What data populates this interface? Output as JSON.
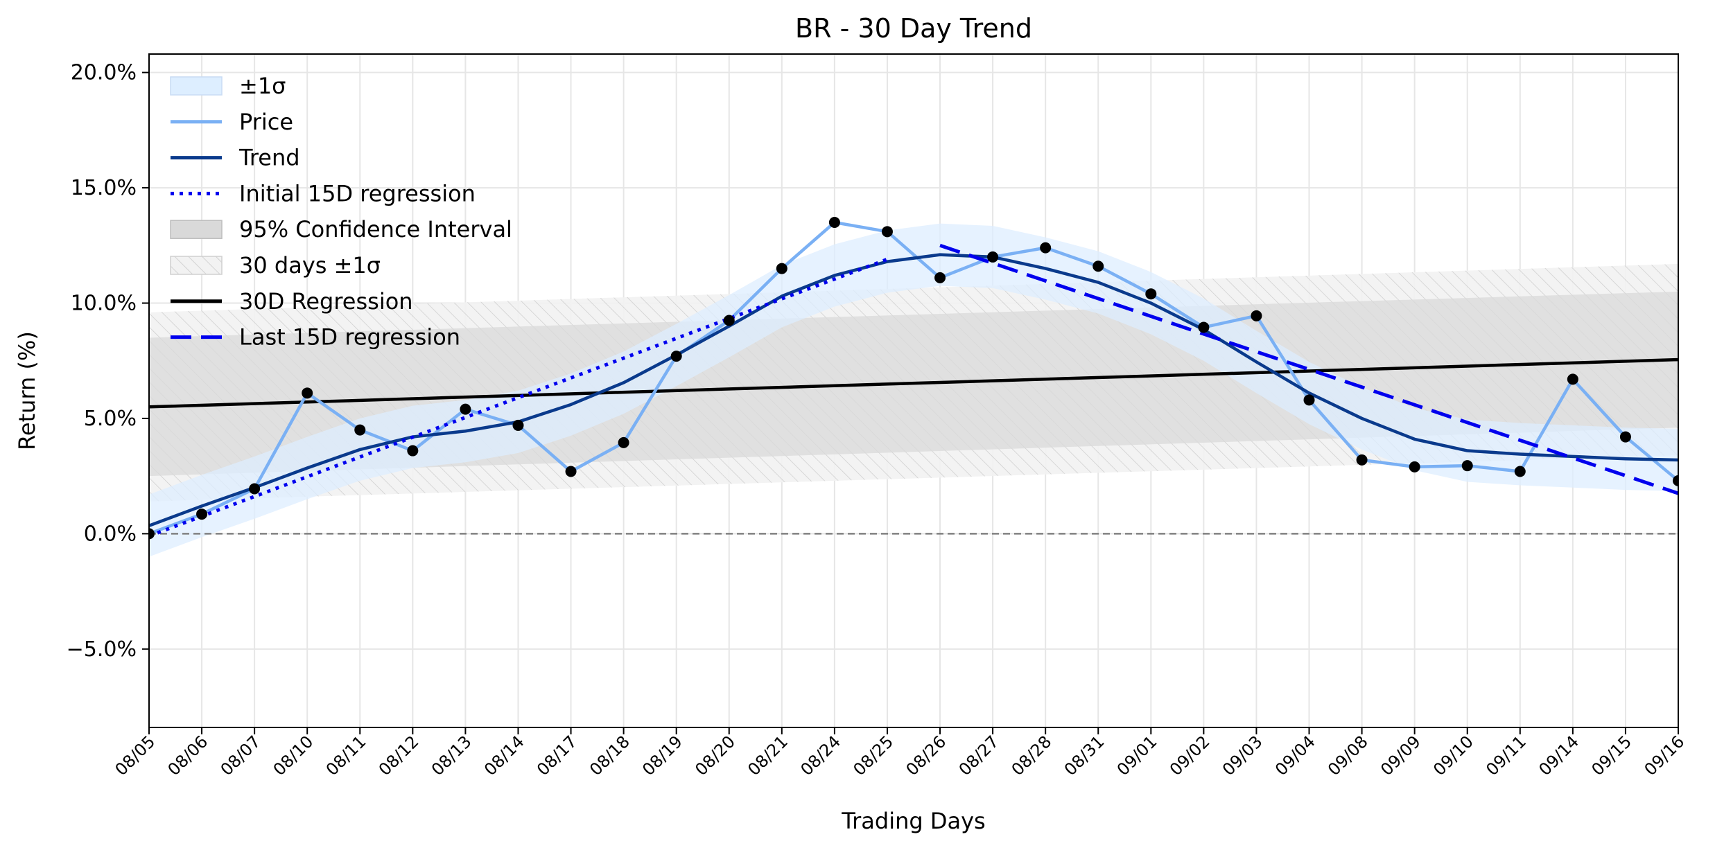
{
  "chart_data": {
    "type": "line",
    "title": "BR - 30 Day Trend",
    "xlabel": "Trading Days",
    "ylabel": "Return (%)",
    "ylim": [
      -8.4,
      20.8
    ],
    "yticks": [
      -5.0,
      0.0,
      5.0,
      10.0,
      15.0,
      20.0
    ],
    "ytick_labels": [
      "−5.0%",
      "0.0%",
      "5.0%",
      "10.0%",
      "15.0%",
      "20.0%"
    ],
    "grid": true,
    "legend_position": "top-left",
    "categories": [
      "08/05",
      "08/06",
      "08/07",
      "08/10",
      "08/11",
      "08/12",
      "08/13",
      "08/14",
      "08/17",
      "08/18",
      "08/19",
      "08/20",
      "08/21",
      "08/24",
      "08/25",
      "08/26",
      "08/27",
      "08/28",
      "08/31",
      "09/01",
      "09/02",
      "09/03",
      "09/04",
      "09/08",
      "09/09",
      "09/10",
      "09/11",
      "09/14",
      "09/15",
      "09/16"
    ],
    "series": [
      {
        "name": "Price",
        "color": "#7ab0f4",
        "values": [
          0.0,
          0.85,
          1.95,
          6.1,
          4.5,
          3.6,
          5.4,
          4.7,
          2.7,
          3.95,
          7.7,
          9.25,
          11.5,
          13.5,
          13.1,
          11.1,
          12.0,
          12.4,
          11.6,
          10.4,
          8.95,
          9.45,
          5.8,
          3.2,
          2.9,
          2.95,
          2.7,
          6.7,
          4.2,
          2.3
        ]
      },
      {
        "name": "Trend",
        "color": "#0a3a8c",
        "values": [
          0.35,
          1.2,
          2.0,
          2.85,
          3.65,
          4.2,
          4.45,
          4.85,
          5.6,
          6.55,
          7.75,
          9.0,
          10.3,
          11.2,
          11.8,
          12.1,
          12.0,
          11.5,
          10.9,
          10.0,
          8.85,
          7.45,
          6.1,
          5.0,
          4.1,
          3.6,
          3.45,
          3.35,
          3.25,
          3.2
        ]
      },
      {
        "name": "Initial 15D regression",
        "color": "#0000ee",
        "x_range": [
          0,
          14
        ],
        "endpoints": [
          -0.1,
          11.9
        ]
      },
      {
        "name": "30D Regression",
        "color": "#000000",
        "x_range": [
          0,
          29
        ],
        "endpoints": [
          5.5,
          7.55
        ]
      },
      {
        "name": "Last 15D regression",
        "color": "#0000ee",
        "x_range": [
          15,
          29
        ],
        "endpoints": [
          12.5,
          1.75
        ]
      }
    ],
    "bands": [
      {
        "name": "±1σ",
        "color": "#ddeeff",
        "around": "Trend",
        "width": 1.35
      },
      {
        "name": "95% Confidence Interval",
        "color": "#d9d9d9",
        "x_range": [
          0,
          29
        ],
        "lower": [
          2.5,
          4.6
        ],
        "upper": [
          8.5,
          10.5
        ]
      },
      {
        "name": "30 days ±1σ",
        "color": "#e4e4e4",
        "x_range": [
          0,
          29
        ],
        "lower": [
          1.4,
          3.4
        ],
        "upper": [
          9.6,
          11.7
        ]
      }
    ],
    "reference_line": {
      "y": 0.0,
      "style": "dashed",
      "color": "#808080"
    }
  }
}
